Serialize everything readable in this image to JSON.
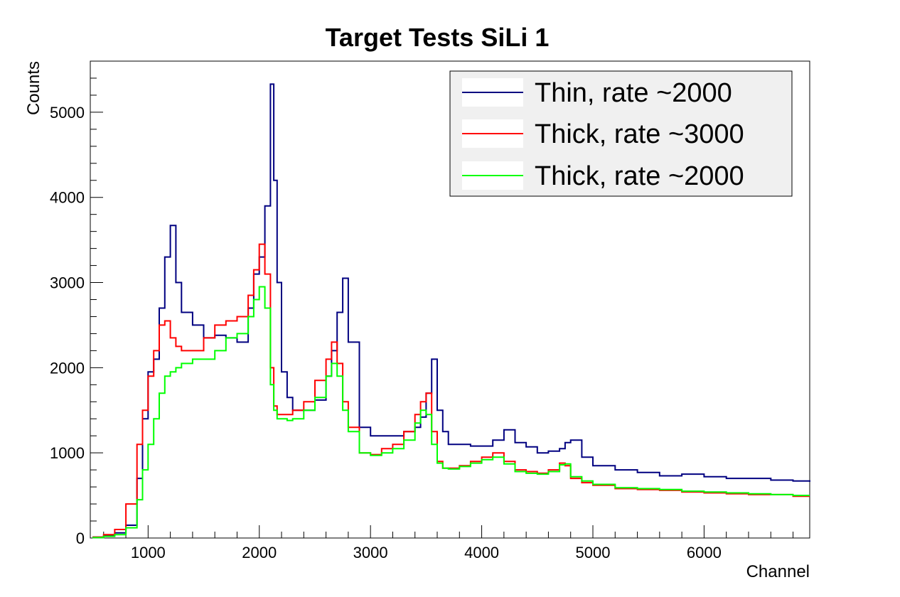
{
  "chart_data": {
    "type": "line",
    "title": "Target Tests SiLi 1",
    "xlabel": "Channel",
    "ylabel": "Counts",
    "xlim": [
      480,
      6950
    ],
    "ylim": [
      0,
      5600
    ],
    "x_ticks": [
      1000,
      2000,
      3000,
      4000,
      5000,
      6000
    ],
    "x_tick_labels": [
      "1000",
      "2000",
      "3000",
      "4000",
      "5000",
      "6000"
    ],
    "y_ticks": [
      0,
      1000,
      2000,
      3000,
      4000,
      5000
    ],
    "y_tick_labels": [
      "0",
      "1000",
      "2000",
      "3000",
      "4000",
      "5000"
    ],
    "grid": false,
    "legend_position": "top-right",
    "x": [
      500,
      600,
      700,
      800,
      900,
      950,
      1000,
      1050,
      1100,
      1150,
      1200,
      1250,
      1300,
      1400,
      1500,
      1600,
      1700,
      1800,
      1900,
      1950,
      2000,
      2050,
      2100,
      2130,
      2160,
      2200,
      2250,
      2300,
      2400,
      2500,
      2600,
      2650,
      2700,
      2750,
      2800,
      2900,
      3000,
      3100,
      3200,
      3300,
      3400,
      3450,
      3500,
      3550,
      3600,
      3650,
      3700,
      3800,
      3900,
      4000,
      4100,
      4200,
      4300,
      4400,
      4500,
      4600,
      4700,
      4750,
      4800,
      4900,
      5000,
      5200,
      5400,
      5600,
      5800,
      6000,
      6200,
      6400,
      6600,
      6800,
      6950
    ],
    "series": [
      {
        "name": "Thin, rate ~2000",
        "color": "#000080",
        "values": [
          10,
          30,
          60,
          150,
          700,
          1400,
          1950,
          2100,
          2700,
          3300,
          3670,
          3000,
          2650,
          2500,
          2350,
          2380,
          2350,
          2300,
          2700,
          3100,
          3300,
          3900,
          5330,
          4200,
          3000,
          1950,
          1650,
          1500,
          1500,
          1620,
          1900,
          2200,
          2650,
          3050,
          2300,
          1300,
          1200,
          1200,
          1200,
          1250,
          1300,
          1420,
          1700,
          2100,
          1500,
          1250,
          1100,
          1100,
          1080,
          1080,
          1150,
          1270,
          1120,
          1070,
          1000,
          1020,
          1050,
          1120,
          1150,
          950,
          850,
          800,
          770,
          730,
          750,
          720,
          700,
          700,
          680,
          670,
          660
        ]
      },
      {
        "name": "Thick, rate ~3000",
        "color": "#ff0000",
        "values": [
          10,
          40,
          100,
          400,
          1100,
          1500,
          1900,
          2200,
          2500,
          2550,
          2350,
          2250,
          2200,
          2200,
          2350,
          2500,
          2550,
          2600,
          2850,
          3150,
          3450,
          3100,
          2000,
          1550,
          1450,
          1450,
          1450,
          1500,
          1600,
          1850,
          2100,
          2300,
          2050,
          1600,
          1300,
          1000,
          980,
          1050,
          1100,
          1250,
          1450,
          1600,
          1700,
          1250,
          900,
          820,
          820,
          850,
          900,
          950,
          1000,
          900,
          800,
          780,
          760,
          800,
          880,
          850,
          700,
          650,
          620,
          580,
          570,
          560,
          540,
          530,
          520,
          510,
          510,
          490,
          490
        ]
      },
      {
        "name": "Thick, rate ~2000",
        "color": "#00ff00",
        "values": [
          5,
          20,
          40,
          120,
          450,
          800,
          1100,
          1400,
          1700,
          1900,
          1950,
          2000,
          2050,
          2100,
          2100,
          2200,
          2350,
          2400,
          2600,
          2800,
          2950,
          2700,
          1800,
          1500,
          1400,
          1400,
          1380,
          1400,
          1500,
          1650,
          1900,
          2050,
          1900,
          1500,
          1250,
          1000,
          970,
          1000,
          1050,
          1150,
          1350,
          1500,
          1450,
          1100,
          880,
          820,
          810,
          840,
          880,
          920,
          950,
          870,
          780,
          760,
          750,
          780,
          860,
          870,
          720,
          670,
          630,
          590,
          580,
          570,
          550,
          540,
          530,
          520,
          510,
          500,
          500
        ]
      }
    ]
  }
}
